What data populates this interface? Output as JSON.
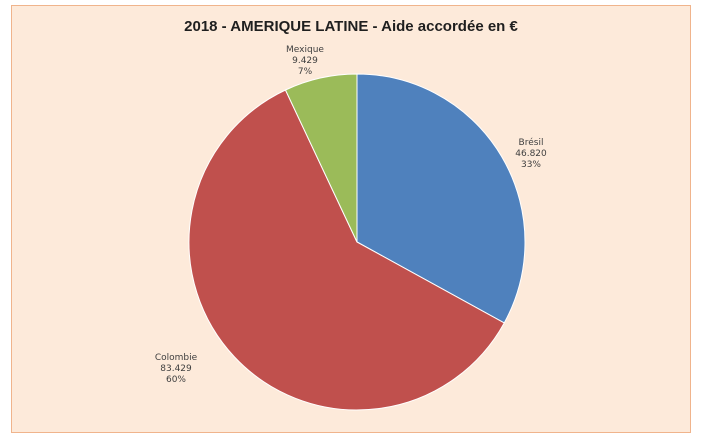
{
  "chart_data": {
    "type": "pie",
    "title": "2018 - AMERIQUE LATINE - Aide accordée en €",
    "slices": [
      {
        "name": "Brésil",
        "value_label": "46.820",
        "pct_label": "33%",
        "percent": 33,
        "color": "#4f81bd"
      },
      {
        "name": "Colombie",
        "value_label": "83.429",
        "pct_label": "60%",
        "percent": 60,
        "color": "#c0504d"
      },
      {
        "name": "Mexique",
        "value_label": "9.429",
        "pct_label": "7%",
        "percent": 7,
        "color": "#9bbb59"
      }
    ],
    "legend": "none",
    "start": "12 o'clock, clockwise"
  }
}
